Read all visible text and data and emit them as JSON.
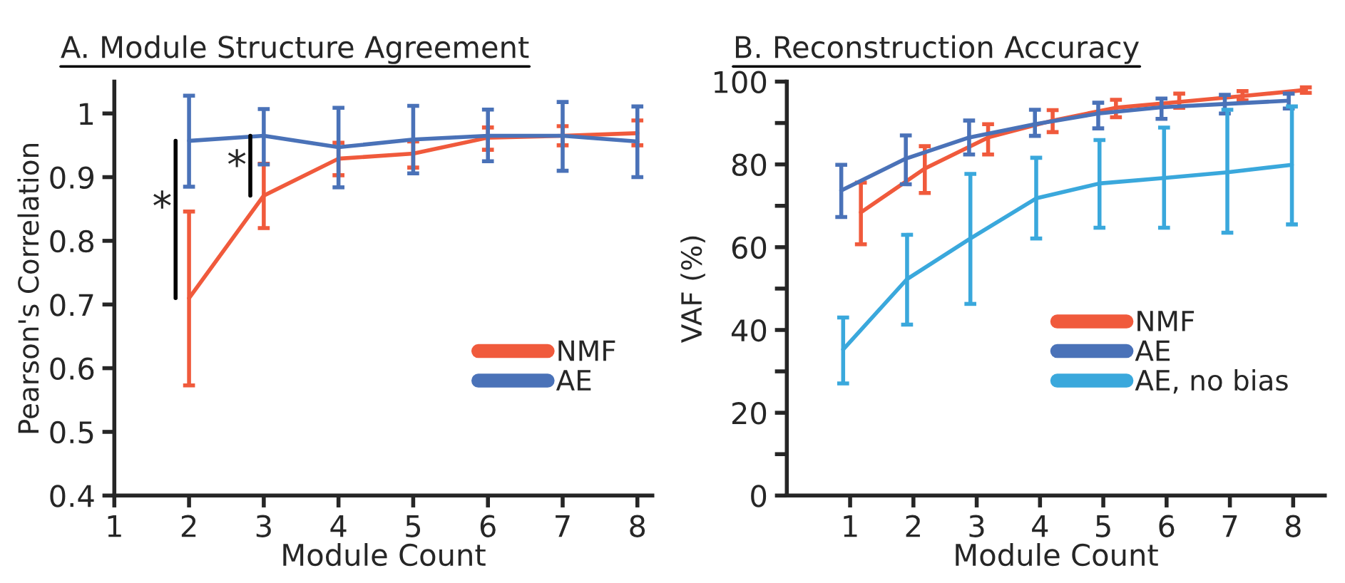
{
  "chart_data": [
    {
      "type": "line",
      "title": "A. Module Structure Agreement",
      "xlabel": "Module Count",
      "ylabel": "Pearson's Correlation",
      "x": [
        2,
        3,
        4,
        5,
        6,
        7,
        8
      ],
      "xlim": [
        1,
        8.2
      ],
      "xticks": [
        1,
        2,
        3,
        4,
        5,
        6,
        7,
        8
      ],
      "ylim": [
        0.4,
        1.05
      ],
      "yticks": [
        0.4,
        0.5,
        0.6,
        0.7,
        0.8,
        0.9,
        1
      ],
      "legend": "bottom right",
      "grid": false,
      "marker": "none",
      "line_style": "solid",
      "series": [
        {
          "name": "NMF",
          "color": "#f05a3c",
          "values": [
            0.71,
            0.871,
            0.929,
            0.937,
            0.962,
            0.965,
            0.969
          ],
          "errors": [
            [
              0.573,
              0.846
            ],
            [
              0.82,
              0.921
            ],
            [
              0.903,
              0.954
            ],
            [
              0.915,
              0.956
            ],
            [
              0.943,
              0.978
            ],
            [
              0.95,
              0.98
            ],
            [
              0.95,
              0.989
            ]
          ]
        },
        {
          "name": "AE",
          "color": "#4a72b8",
          "values": [
            0.957,
            0.965,
            0.947,
            0.959,
            0.965,
            0.965,
            0.956
          ],
          "errors": [
            [
              0.885,
              1.028
            ],
            [
              0.92,
              1.007
            ],
            [
              0.884,
              1.009
            ],
            [
              0.906,
              1.012
            ],
            [
              0.925,
              1.006
            ],
            [
              0.91,
              1.018
            ],
            [
              0.9,
              1.011
            ]
          ]
        }
      ],
      "annotations": [
        {
          "text": "*",
          "x": 2,
          "y": 0.85
        },
        {
          "text": "*",
          "x": 3,
          "y": 0.915
        }
      ]
    },
    {
      "type": "line",
      "title": "B. Reconstruction Accuracy",
      "xlabel": "Module Count",
      "ylabel": "VAF (%)",
      "xlim": [
        0,
        8.5
      ],
      "xticks": [
        1,
        2,
        3,
        4,
        5,
        6,
        7,
        8
      ],
      "ylim": [
        0,
        100
      ],
      "yticks": [
        0,
        {
          "value": 10,
          "label": null
        },
        20,
        {
          "value": 30,
          "label": null
        },
        40,
        {
          "value": 50,
          "label": null
        },
        60,
        {
          "value": 70,
          "label": null
        },
        80,
        {
          "value": 90,
          "label": null
        },
        100
      ],
      "legend": "bottom right",
      "grid": false,
      "marker": "none",
      "line_style": "solid",
      "series": [
        {
          "name": "NMF",
          "color": "#f05a3c",
          "x": [
            1.17,
            2.18,
            3.18,
            4.2,
            5.2,
            6.2,
            7.2,
            8.2
          ],
          "values": [
            68.4,
            79,
            86.5,
            90.6,
            93.7,
            95.1,
            96.5,
            98
          ],
          "errors": [
            [
              60.7,
              75.6
            ],
            [
              73.1,
              84.4
            ],
            [
              82.4,
              89.7
            ],
            [
              87.8,
              93.1
            ],
            [
              91.4,
              95.6
            ],
            [
              93.7,
              97.1
            ],
            [
              95.5,
              97.7
            ],
            [
              97.3,
              98.6
            ]
          ]
        },
        {
          "name": "AE",
          "color": "#4a72b8",
          "x": [
            0.86,
            1.88,
            2.88,
            3.92,
            4.92,
            5.92,
            6.92,
            7.93
          ],
          "values": [
            73.7,
            81.4,
            86.5,
            89.7,
            92.3,
            93.8,
            94.6,
            95.4
          ],
          "errors": [
            [
              67.3,
              79.9
            ],
            [
              75.2,
              87
            ],
            [
              82.4,
              90.6
            ],
            [
              86.9,
              93.2
            ],
            [
              88.7,
              94.9
            ],
            [
              91,
              95.9
            ],
            [
              92.3,
              96.8
            ],
            [
              93.5,
              97.1
            ]
          ]
        },
        {
          "name": "AE, no bias",
          "color": "#3aa8dc",
          "x": [
            0.89,
            1.9,
            2.9,
            3.94,
            4.94,
            5.96,
            6.96,
            7.98
          ],
          "values": [
            35.3,
            52.3,
            62.1,
            71.8,
            75.4,
            76.7,
            78.1,
            79.9
          ],
          "errors": [
            [
              27.1,
              43
            ],
            [
              41.3,
              63
            ],
            [
              46.3,
              77.7
            ],
            [
              62.1,
              81.6
            ],
            [
              64.7,
              85.9
            ],
            [
              64.7,
              88.9
            ],
            [
              63.5,
              93.2
            ],
            [
              65.5,
              94
            ]
          ]
        }
      ]
    }
  ]
}
